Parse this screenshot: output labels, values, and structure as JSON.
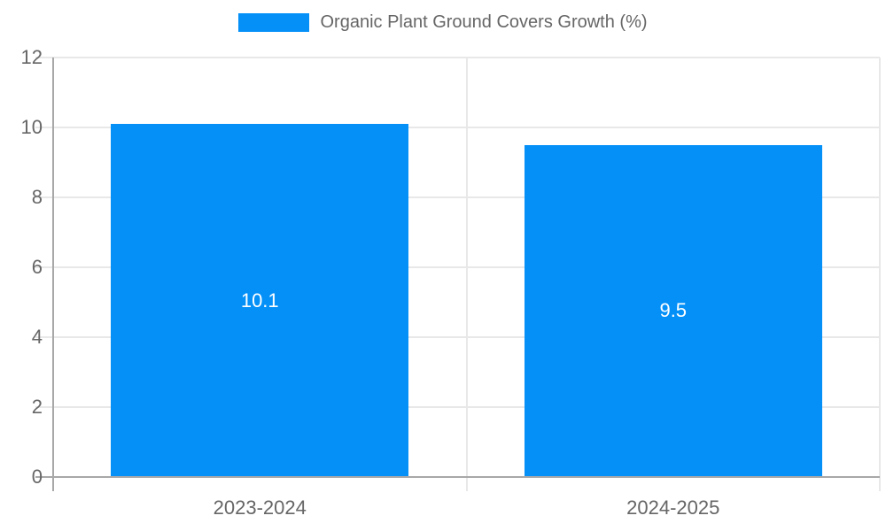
{
  "legend": {
    "label": "Organic Plant Ground Covers Growth (%)"
  },
  "chart_data": {
    "type": "bar",
    "title": "Organic Plant Ground Covers Growth (%)",
    "categories": [
      "2023-2024",
      "2024-2025"
    ],
    "values": [
      10.1,
      9.5
    ],
    "value_labels": [
      "10.1",
      "9.5"
    ],
    "xlabel": "",
    "ylabel": "",
    "ylim": [
      0,
      12
    ],
    "ytick_step": 2,
    "ytick_labels": [
      "0",
      "2",
      "4",
      "6",
      "8",
      "10",
      "12"
    ],
    "grid": true,
    "legend_position": "top",
    "bar_color": "#0590f8",
    "grid_color": "#e8e8e8",
    "axis_color": "#a8a8a8",
    "tick_text_color": "#666666",
    "value_text_color": "#ffffff",
    "background_color": "#ffffff"
  }
}
